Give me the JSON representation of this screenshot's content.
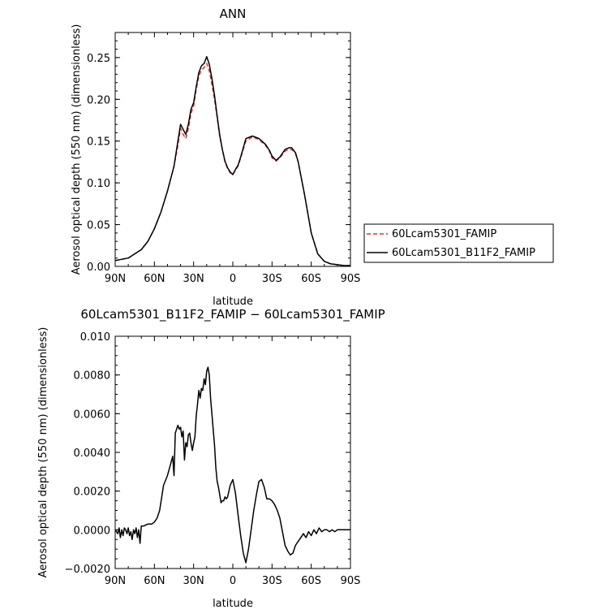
{
  "chart_data": [
    {
      "type": "line",
      "title": "ANN",
      "xlabel": "latitude",
      "ylabel": "Aerosol optical depth (550 nm) (dimensionless)",
      "xlim": [
        90,
        -90
      ],
      "ylim": [
        0,
        0.28
      ],
      "x_ticks": [
        90,
        60,
        30,
        0,
        -30,
        -60,
        -90
      ],
      "x_tick_labels": [
        "90N",
        "60N",
        "30N",
        "0",
        "30S",
        "60S",
        "90S"
      ],
      "y_ticks": [
        0,
        0.05,
        0.1,
        0.15,
        0.2,
        0.25
      ],
      "y_tick_labels": [
        "0.00",
        "0.05",
        "0.10",
        "0.15",
        "0.20",
        "0.25"
      ],
      "legend": {
        "placement": "right-outside"
      },
      "series": [
        {
          "name": "60Lcam5301_FAMIP",
          "color": "#e03030",
          "dash": "dashed",
          "x": [
            90,
            80,
            70,
            65,
            60,
            55,
            50,
            45,
            42,
            40,
            38,
            36,
            34,
            32,
            30,
            28,
            26,
            24,
            22,
            20,
            18,
            16,
            14,
            12,
            10,
            8,
            6,
            4,
            2,
            0,
            -2,
            -4,
            -6,
            -8,
            -10,
            -15,
            -20,
            -25,
            -28,
            -30,
            -33,
            -36,
            -40,
            -43,
            -45,
            -48,
            -50,
            -55,
            -60,
            -65,
            -70,
            -75,
            -80,
            -85,
            -90
          ],
          "y": [
            0.007,
            0.01,
            0.02,
            0.03,
            0.045,
            0.065,
            0.09,
            0.12,
            0.145,
            0.165,
            0.158,
            0.153,
            0.165,
            0.183,
            0.192,
            0.212,
            0.228,
            0.235,
            0.238,
            0.243,
            0.234,
            0.218,
            0.2,
            0.178,
            0.155,
            0.14,
            0.125,
            0.117,
            0.112,
            0.11,
            0.115,
            0.12,
            0.13,
            0.14,
            0.15,
            0.155,
            0.152,
            0.145,
            0.138,
            0.13,
            0.126,
            0.13,
            0.138,
            0.14,
            0.14,
            0.135,
            0.125,
            0.085,
            0.04,
            0.015,
            0.006,
            0.003,
            0.002,
            0.001,
            0.001
          ]
        },
        {
          "name": "60Lcam5301_B11F2_FAMIP",
          "color": "#000000",
          "dash": "solid",
          "x": [
            90,
            80,
            70,
            65,
            60,
            55,
            50,
            45,
            42,
            40,
            38,
            36,
            34,
            32,
            30,
            28,
            26,
            24,
            22,
            20,
            18,
            16,
            14,
            12,
            10,
            8,
            6,
            4,
            2,
            0,
            -2,
            -4,
            -6,
            -8,
            -10,
            -15,
            -20,
            -25,
            -28,
            -30,
            -33,
            -36,
            -40,
            -43,
            -45,
            -48,
            -50,
            -55,
            -60,
            -65,
            -70,
            -75,
            -80,
            -85,
            -90
          ],
          "y": [
            0.007,
            0.01,
            0.02,
            0.03,
            0.045,
            0.065,
            0.09,
            0.12,
            0.15,
            0.17,
            0.164,
            0.158,
            0.17,
            0.188,
            0.196,
            0.215,
            0.232,
            0.24,
            0.243,
            0.251,
            0.242,
            0.225,
            0.205,
            0.18,
            0.157,
            0.14,
            0.126,
            0.118,
            0.113,
            0.11,
            0.116,
            0.121,
            0.131,
            0.142,
            0.153,
            0.156,
            0.153,
            0.146,
            0.139,
            0.132,
            0.127,
            0.131,
            0.14,
            0.142,
            0.142,
            0.136,
            0.125,
            0.085,
            0.04,
            0.015,
            0.006,
            0.003,
            0.002,
            0.001,
            0.001
          ]
        }
      ]
    },
    {
      "type": "line",
      "title": "60Lcam5301_B11F2_FAMIP − 60Lcam5301_FAMIP",
      "xlabel": "latitude",
      "ylabel": "Aerosol optical depth (550 nm) (dimensionless)",
      "xlim": [
        90,
        -90
      ],
      "ylim": [
        -0.002,
        0.01
      ],
      "x_ticks": [
        90,
        60,
        30,
        0,
        -30,
        -60,
        -90
      ],
      "x_tick_labels": [
        "90N",
        "60N",
        "30N",
        "0",
        "30S",
        "60S",
        "90S"
      ],
      "y_ticks": [
        -0.002,
        0,
        0.002,
        0.004,
        0.006,
        0.008,
        0.01
      ],
      "y_tick_labels": [
        "−0.0020",
        "0.0000",
        "0.0020",
        "0.0040",
        "0.0060",
        "0.0080",
        "0.010"
      ],
      "series": [
        {
          "color": "#000000",
          "dash": "solid",
          "x": [
            90,
            88,
            87,
            86,
            85,
            84,
            83,
            82,
            81,
            80,
            79,
            78,
            77,
            76,
            75,
            74,
            73,
            72,
            71,
            70,
            68,
            65,
            62,
            60,
            58,
            56,
            53,
            50,
            48,
            46,
            45,
            44,
            43,
            42,
            41,
            40,
            39,
            38,
            37,
            36,
            35,
            34,
            33,
            32,
            31,
            30,
            29,
            28,
            27,
            26,
            25,
            24,
            23,
            22,
            21,
            20,
            19,
            18,
            17,
            16,
            15,
            14,
            13,
            12,
            11,
            10,
            9,
            8,
            7,
            6,
            5,
            4,
            2,
            0,
            -2,
            -4,
            -6,
            -8,
            -10,
            -12,
            -14,
            -16,
            -17,
            -18,
            -20,
            -22,
            -24,
            -26,
            -28,
            -30,
            -32,
            -34,
            -36,
            -38,
            -40,
            -42,
            -44,
            -46,
            -48,
            -50,
            -52,
            -54,
            -56,
            -58,
            -60,
            -62,
            -64,
            -66,
            -68,
            -70,
            -72,
            -74,
            -76,
            -78,
            -80,
            -82,
            -84,
            -86,
            -88,
            -90
          ],
          "y": [
            0.0,
            -0.0002,
            0.0001,
            -0.0004,
            0.0,
            -0.0003,
            0.0001,
            0.0,
            -0.0002,
            0.0001,
            -0.0003,
            -0.0001,
            -0.0005,
            0.0,
            -0.0002,
            0.0001,
            -0.0004,
            0.0,
            -0.0007,
            0.0002,
            0.0002,
            0.0003,
            0.0003,
            0.0004,
            0.0006,
            0.001,
            0.0023,
            0.0028,
            0.0033,
            0.0038,
            0.0028,
            0.005,
            0.0052,
            0.0054,
            0.0052,
            0.0053,
            0.0048,
            0.0051,
            0.0036,
            0.0045,
            0.0043,
            0.0049,
            0.005,
            0.0045,
            0.0041,
            0.0045,
            0.0048,
            0.0059,
            0.0065,
            0.0072,
            0.0068,
            0.0073,
            0.0072,
            0.0078,
            0.0075,
            0.0082,
            0.0084,
            0.008,
            0.0068,
            0.006,
            0.0052,
            0.0044,
            0.0032,
            0.0025,
            0.0022,
            0.0018,
            0.0014,
            0.0015,
            0.0015,
            0.0017,
            0.0016,
            0.0017,
            0.0023,
            0.0026,
            0.0019,
            0.0008,
            -0.0003,
            -0.0012,
            -0.0017,
            -0.001,
            0.0,
            0.001,
            0.0014,
            0.0018,
            0.0025,
            0.0026,
            0.0022,
            0.0016,
            0.0016,
            0.0015,
            0.0013,
            0.001,
            0.0006,
            -0.0001,
            -0.0008,
            -0.0011,
            -0.0013,
            -0.0012,
            -0.0008,
            -0.0006,
            -0.0004,
            -0.0002,
            -0.0004,
            -0.0001,
            -0.0003,
            0.0,
            -0.0002,
            0.0001,
            -0.0001,
            0.0,
            0.0,
            -0.0001,
            0.0,
            -0.0001,
            0.0,
            0.0,
            0.0,
            0.0,
            0.0,
            0.0
          ]
        }
      ]
    }
  ]
}
